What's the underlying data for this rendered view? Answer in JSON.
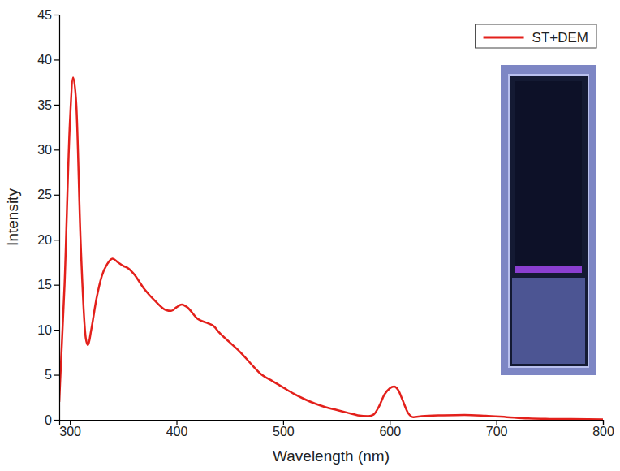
{
  "chart_data": {
    "type": "line",
    "x_label": "Wavelength (nm)",
    "y_label": "Intensity",
    "x": [
      290,
      295,
      300,
      303,
      306,
      310,
      315,
      317,
      320,
      325,
      330,
      335,
      340,
      345,
      350,
      355,
      360,
      370,
      380,
      390,
      395,
      400,
      405,
      410,
      420,
      430,
      435,
      440,
      450,
      460,
      470,
      480,
      490,
      500,
      510,
      520,
      530,
      540,
      550,
      560,
      570,
      580,
      585,
      590,
      595,
      600,
      604,
      608,
      612,
      617,
      622,
      630,
      650,
      670,
      690,
      710,
      730,
      750,
      770,
      800
    ],
    "series": [
      {
        "name": "ST+DEM",
        "color": "#e3201b",
        "values": [
          2,
          15,
          33,
          38,
          35,
          20,
          9,
          8.3,
          10,
          13.5,
          16,
          17.3,
          17.9,
          17.5,
          17.1,
          16.8,
          16.2,
          14.5,
          13.2,
          12.2,
          12.1,
          12.5,
          12.8,
          12.5,
          11.2,
          10.7,
          10.4,
          9.7,
          8.6,
          7.5,
          6.2,
          5.0,
          4.3,
          3.6,
          2.9,
          2.3,
          1.8,
          1.4,
          1.1,
          0.8,
          0.5,
          0.4,
          0.6,
          1.5,
          2.8,
          3.5,
          3.7,
          3.3,
          2.2,
          0.8,
          0.3,
          0.4,
          0.5,
          0.55,
          0.45,
          0.3,
          0.15,
          0.1,
          0.08,
          0.05
        ]
      }
    ],
    "xlim": [
      290,
      800
    ],
    "xticks": [
      300,
      400,
      500,
      600,
      700,
      800
    ],
    "ylim": [
      0,
      45
    ],
    "yticks": [
      0,
      5,
      10,
      15,
      20,
      25,
      30,
      35,
      40,
      45
    ],
    "grid": false,
    "legend": "upper right"
  }
}
